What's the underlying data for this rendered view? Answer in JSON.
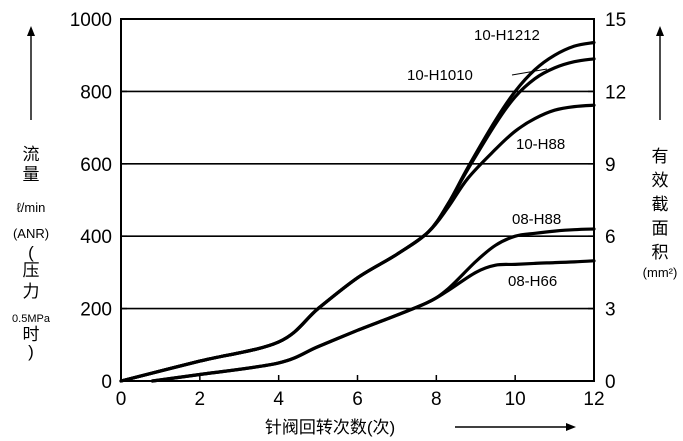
{
  "chart_data": {
    "type": "line",
    "xlabel": "针阀回转次数(次)",
    "left_axis": {
      "label_lines": [
        "流",
        "量",
        "ℓ/min",
        "(ANR)",
        "(",
        "压",
        "力",
        "0.5MPa",
        "时",
        ")"
      ],
      "ylim": [
        0,
        1000
      ],
      "ticks": [
        0,
        200,
        400,
        600,
        800,
        1000
      ]
    },
    "right_axis": {
      "label_lines": [
        "有",
        "效",
        "截",
        "面",
        "积",
        "(mm²)"
      ],
      "ylim": [
        0,
        15
      ],
      "ticks": [
        0,
        3,
        6,
        9,
        12,
        15
      ]
    },
    "x_ticks": [
      0,
      2,
      4,
      6,
      8,
      10,
      12
    ],
    "xlim": [
      0,
      12
    ],
    "grid": "horizontal",
    "series": [
      {
        "name": "10-H1212",
        "x": [
          0,
          2,
          4,
          5,
          6,
          7,
          7.8,
          8.3,
          8.8,
          9.5,
          10,
          10.5,
          11,
          11.5,
          12
        ],
        "y": [
          0,
          55,
          108,
          200,
          285,
          350,
          412,
          490,
          590,
          720,
          800,
          860,
          900,
          925,
          935
        ]
      },
      {
        "name": "10-H1010",
        "x": [
          0,
          2,
          4,
          5,
          6,
          7,
          7.8,
          8.3,
          8.8,
          9.5,
          10,
          10.5,
          11,
          11.5,
          12
        ],
        "y": [
          0,
          55,
          108,
          200,
          285,
          350,
          412,
          490,
          585,
          710,
          785,
          835,
          865,
          882,
          890
        ]
      },
      {
        "name": "10-H88",
        "x": [
          0,
          2,
          4,
          5,
          6,
          7,
          7.8,
          8.3,
          8.8,
          9.5,
          10,
          10.5,
          11,
          11.5,
          12
        ],
        "y": [
          0,
          55,
          108,
          200,
          285,
          350,
          412,
          480,
          560,
          640,
          690,
          725,
          748,
          758,
          762
        ]
      },
      {
        "name": "08-H88",
        "x": [
          0.8,
          2,
          4,
          5,
          6,
          7,
          7.8,
          8.3,
          9,
          9.5,
          10,
          10.5,
          11,
          11.5,
          12
        ],
        "y": [
          0,
          18,
          50,
          95,
          140,
          182,
          218,
          255,
          330,
          375,
          400,
          408,
          414,
          418,
          420
        ]
      },
      {
        "name": "08-H66",
        "x": [
          0.8,
          2,
          4,
          5,
          6,
          7,
          7.8,
          8.3,
          9,
          9.5,
          10,
          10.5,
          11,
          11.5,
          12
        ],
        "y": [
          0,
          18,
          50,
          95,
          140,
          182,
          218,
          250,
          300,
          320,
          322,
          325,
          327,
          329,
          332
        ]
      }
    ]
  }
}
